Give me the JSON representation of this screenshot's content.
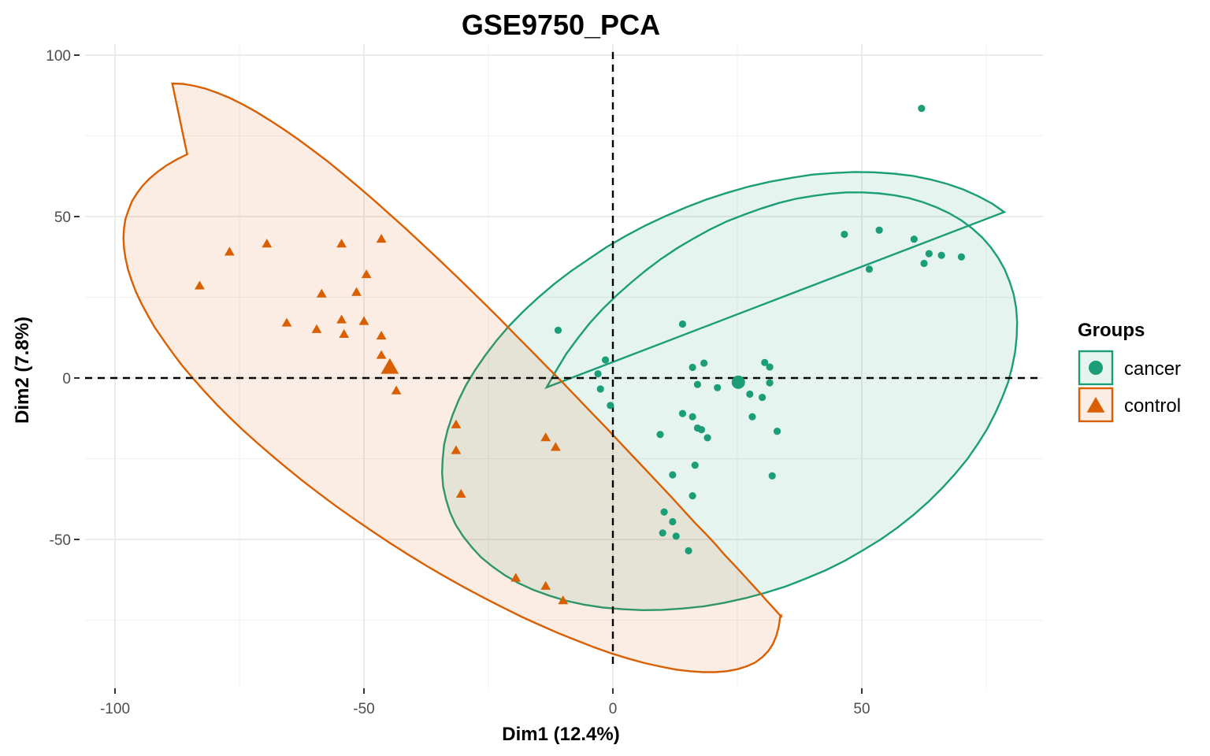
{
  "chart_data": {
    "type": "scatter",
    "title": "GSE9750_PCA",
    "xlabel": "Dim1 (12.4%)",
    "ylabel": "Dim2 (7.8%)",
    "xlim": [
      -101.5,
      86
    ],
    "ylim": [
      -95,
      102
    ],
    "x_ticks": [
      {
        "value": -100,
        "label": "-100"
      },
      {
        "value": -50,
        "label": "-50"
      },
      {
        "value": 0,
        "label": "0"
      },
      {
        "value": 50,
        "label": "50"
      }
    ],
    "y_ticks": [
      {
        "value": -50,
        "label": "-50"
      },
      {
        "value": 0,
        "label": "0"
      },
      {
        "value": 50,
        "label": "50"
      },
      {
        "value": 100,
        "label": "100"
      }
    ],
    "grid": true,
    "reference_lines": {
      "x": 0,
      "y": 0,
      "style": "dashed"
    },
    "legend": {
      "title": "Groups",
      "position": "right"
    },
    "series": [
      {
        "name": "cancer",
        "color": "#1b9e77",
        "marker": "circle",
        "centroid": [
          25.2,
          -1.3
        ],
        "ellipse": [
          [
            -13.3,
            -2.9
          ],
          [
            -11.4,
            2.3
          ],
          [
            -9.4,
            7.4
          ],
          [
            -7.1,
            12.2
          ],
          [
            -4.7,
            16.9
          ],
          [
            -2.1,
            21.3
          ],
          [
            0.7,
            25.5
          ],
          [
            3.6,
            29.5
          ],
          [
            6.6,
            33.3
          ],
          [
            9.7,
            36.9
          ],
          [
            12.9,
            40.2
          ],
          [
            16.2,
            43.2
          ],
          [
            19.5,
            46.0
          ],
          [
            22.9,
            48.5
          ],
          [
            26.4,
            50.6
          ],
          [
            29.8,
            52.5
          ],
          [
            33.3,
            54.2
          ],
          [
            36.7,
            55.5
          ],
          [
            40.2,
            56.4
          ],
          [
            43.6,
            57.1
          ],
          [
            46.9,
            57.5
          ],
          [
            50.2,
            57.5
          ],
          [
            53.4,
            57.2
          ],
          [
            56.5,
            56.6
          ],
          [
            59.5,
            55.7
          ],
          [
            62.4,
            54.4
          ],
          [
            65.1,
            52.8
          ],
          [
            67.6,
            51.0
          ],
          [
            70.0,
            48.8
          ],
          [
            72.2,
            46.3
          ],
          [
            74.2,
            43.5
          ],
          [
            75.9,
            40.5
          ],
          [
            77.4,
            37.2
          ],
          [
            78.7,
            33.6
          ],
          [
            79.7,
            29.8
          ],
          [
            80.5,
            25.9
          ],
          [
            81.0,
            21.7
          ],
          [
            81.2,
            17.3
          ],
          [
            81.1,
            12.8
          ],
          [
            80.8,
            8.2
          ],
          [
            80.2,
            3.5
          ],
          [
            79.4,
            -1.3
          ],
          [
            78.2,
            -6.1
          ],
          [
            76.8,
            -10.9
          ],
          [
            75.2,
            -15.7
          ],
          [
            73.3,
            -20.4
          ],
          [
            71.2,
            -25.1
          ],
          [
            68.8,
            -29.6
          ],
          [
            66.2,
            -34.0
          ],
          [
            63.4,
            -38.3
          ],
          [
            60.4,
            -42.4
          ],
          [
            57.2,
            -46.3
          ],
          [
            53.8,
            -50.0
          ],
          [
            50.2,
            -53.4
          ],
          [
            46.6,
            -56.6
          ],
          [
            42.8,
            -59.5
          ],
          [
            38.8,
            -62.1
          ],
          [
            34.8,
            -64.5
          ],
          [
            30.7,
            -66.5
          ],
          [
            26.6,
            -68.2
          ],
          [
            22.4,
            -69.6
          ],
          [
            18.3,
            -70.7
          ],
          [
            14.1,
            -71.4
          ],
          [
            9.9,
            -71.8
          ],
          [
            5.9,
            -71.9
          ],
          [
            1.9,
            -71.6
          ],
          [
            -2.0,
            -71.1
          ],
          [
            -5.8,
            -70.2
          ],
          [
            -9.4,
            -69.0
          ],
          [
            -12.8,
            -67.4
          ],
          [
            -16.0,
            -65.6
          ],
          [
            -19.0,
            -63.5
          ],
          [
            -21.7,
            -61.1
          ],
          [
            -24.2,
            -58.4
          ],
          [
            -26.5,
            -55.5
          ],
          [
            -28.4,
            -52.3
          ],
          [
            -30.1,
            -49.0
          ],
          [
            -31.6,
            -45.4
          ],
          [
            -32.7,
            -41.6
          ],
          [
            -33.5,
            -37.7
          ],
          [
            -34.1,
            -33.6
          ],
          [
            -34.3,
            -29.4
          ],
          [
            -34.2,
            -25.1
          ],
          [
            -33.9,
            -20.6
          ],
          [
            -33.2,
            -16.1
          ],
          [
            -32.2,
            -11.5
          ],
          [
            -31.0,
            -6.9
          ],
          [
            -29.5,
            -2.2
          ],
          [
            -27.7,
            2.4
          ],
          [
            -25.6,
            7.1
          ],
          [
            -23.3,
            11.7
          ],
          [
            -20.8,
            16.2
          ],
          [
            -18.0,
            20.6
          ],
          [
            -15.0,
            24.9
          ],
          [
            -11.8,
            29.1
          ],
          [
            -8.4,
            33.1
          ],
          [
            -4.8,
            36.9
          ],
          [
            -1.2,
            40.6
          ],
          [
            2.6,
            44.0
          ],
          [
            6.5,
            47.2
          ],
          [
            10.5,
            50.1
          ],
          [
            14.6,
            52.8
          ],
          [
            18.8,
            55.3
          ],
          [
            23.0,
            57.4
          ],
          [
            27.3,
            59.3
          ],
          [
            31.6,
            60.8
          ],
          [
            35.9,
            62.0
          ],
          [
            40.1,
            63.0
          ],
          [
            44.3,
            63.5
          ],
          [
            48.5,
            63.8
          ],
          [
            52.5,
            63.7
          ],
          [
            56.4,
            63.3
          ],
          [
            60.2,
            62.6
          ],
          [
            63.8,
            61.5
          ],
          [
            67.2,
            60.1
          ],
          [
            70.4,
            58.4
          ],
          [
            73.4,
            56.3
          ],
          [
            76.2,
            54.0
          ],
          [
            78.6,
            51.4
          ]
        ],
        "points": [
          [
            62,
            83.5
          ],
          [
            46.5,
            44.5
          ],
          [
            53.5,
            45.8
          ],
          [
            60.5,
            43
          ],
          [
            63.5,
            38.5
          ],
          [
            66,
            38
          ],
          [
            70,
            37.5
          ],
          [
            62.5,
            35.5
          ],
          [
            51.5,
            33.7
          ],
          [
            -11,
            14.8
          ],
          [
            14,
            16.7
          ],
          [
            -1.5,
            5.6
          ],
          [
            -3,
            1.3
          ],
          [
            -2.5,
            -3.4
          ],
          [
            -0.5,
            -8.5
          ],
          [
            16,
            3.3
          ],
          [
            18.3,
            4.6
          ],
          [
            30.5,
            4.8
          ],
          [
            31.5,
            3.4
          ],
          [
            17,
            -2
          ],
          [
            21,
            -3
          ],
          [
            27.5,
            -5
          ],
          [
            30,
            -6
          ],
          [
            31.5,
            -1.5
          ],
          [
            28,
            -12
          ],
          [
            14,
            -11
          ],
          [
            16,
            -12
          ],
          [
            17,
            -15.5
          ],
          [
            17.8,
            -16
          ],
          [
            19,
            -18.5
          ],
          [
            9.5,
            -17.5
          ],
          [
            33,
            -16.5
          ],
          [
            16.5,
            -27
          ],
          [
            12,
            -30
          ],
          [
            32,
            -30.3
          ],
          [
            16,
            -36.5
          ],
          [
            10.3,
            -41.5
          ],
          [
            12,
            -44.5
          ],
          [
            10,
            -48
          ],
          [
            12.7,
            -49
          ],
          [
            15.2,
            -53.5
          ]
        ]
      },
      {
        "name": "control",
        "color": "#d95f02",
        "marker": "triangle",
        "centroid": [
          -44.8,
          3.2
        ],
        "ellipse": [
          [
            -88.5,
            91.2
          ],
          [
            -86.4,
            91.1
          ],
          [
            -84.1,
            90.5
          ],
          [
            -81.8,
            89.6
          ],
          [
            -79.4,
            88.3
          ],
          [
            -76.9,
            86.7
          ],
          [
            -74.3,
            84.7
          ],
          [
            -71.6,
            82.4
          ],
          [
            -68.9,
            79.8
          ],
          [
            -66.1,
            77.0
          ],
          [
            -63.2,
            73.9
          ],
          [
            -60.2,
            70.5
          ],
          [
            -57.2,
            67.0
          ],
          [
            -54.2,
            63.2
          ],
          [
            -51.1,
            59.2
          ],
          [
            -48.0,
            55.1
          ],
          [
            -44.9,
            50.8
          ],
          [
            -41.7,
            46.4
          ],
          [
            -38.5,
            41.8
          ],
          [
            -35.3,
            37.2
          ],
          [
            -32.1,
            32.5
          ],
          [
            -28.9,
            27.7
          ],
          [
            -25.7,
            22.9
          ],
          [
            -22.5,
            18.0
          ],
          [
            -19.4,
            13.1
          ],
          [
            -16.3,
            8.3
          ],
          [
            -13.2,
            3.4
          ],
          [
            -10.1,
            -1.4
          ],
          [
            -7.1,
            -6.2
          ],
          [
            -4.2,
            -10.9
          ],
          [
            -1.3,
            -15.5
          ],
          [
            1.5,
            -20.1
          ],
          [
            4.2,
            -24.5
          ],
          [
            6.9,
            -28.9
          ],
          [
            9.4,
            -33.0
          ],
          [
            11.9,
            -37.1
          ],
          [
            14.2,
            -41.0
          ],
          [
            16.4,
            -44.7
          ],
          [
            18.6,
            -48.2
          ],
          [
            20.6,
            -51.5
          ],
          [
            22.4,
            -54.7
          ],
          [
            24.2,
            -57.6
          ],
          [
            25.8,
            -60.3
          ],
          [
            27.3,
            -62.8
          ],
          [
            28.6,
            -65.0
          ],
          [
            29.8,
            -67.0
          ],
          [
            30.8,
            -68.8
          ],
          [
            31.7,
            -70.3
          ],
          [
            32.4,
            -71.5
          ],
          [
            33.0,
            -72.5
          ],
          [
            33.4,
            -73.2
          ],
          [
            33.7,
            -73.7
          ],
          [
            33.8,
            -73.8
          ],
          [
            33.8,
            -73.7
          ],
          [
            33.6,
            -74.0
          ],
          [
            33.3,
            -77.1
          ],
          [
            32.8,
            -80.0
          ],
          [
            32.1,
            -82.5
          ],
          [
            31.2,
            -84.6
          ],
          [
            30.0,
            -86.5
          ],
          [
            28.6,
            -88.1
          ],
          [
            26.9,
            -89.3
          ],
          [
            25.0,
            -90.2
          ],
          [
            22.9,
            -90.8
          ],
          [
            20.6,
            -91.1
          ],
          [
            18.1,
            -91.1
          ],
          [
            15.4,
            -90.8
          ],
          [
            12.6,
            -90.3
          ],
          [
            9.6,
            -89.4
          ],
          [
            6.4,
            -88.3
          ],
          [
            3.1,
            -86.9
          ],
          [
            -0.3,
            -85.3
          ],
          [
            -3.8,
            -83.4
          ],
          [
            -7.3,
            -81.3
          ],
          [
            -11.0,
            -79.0
          ],
          [
            -14.7,
            -76.5
          ],
          [
            -18.4,
            -73.9
          ],
          [
            -22.2,
            -71.0
          ],
          [
            -26.0,
            -68.0
          ],
          [
            -29.8,
            -64.9
          ],
          [
            -33.6,
            -61.6
          ],
          [
            -37.4,
            -58.2
          ],
          [
            -41.1,
            -54.7
          ],
          [
            -44.8,
            -51.1
          ],
          [
            -48.4,
            -47.4
          ],
          [
            -52.0,
            -43.6
          ],
          [
            -55.5,
            -39.8
          ],
          [
            -58.9,
            -35.9
          ],
          [
            -62.2,
            -32.0
          ],
          [
            -65.4,
            -28.0
          ],
          [
            -68.5,
            -24.0
          ],
          [
            -71.5,
            -20.0
          ],
          [
            -74.4,
            -16.0
          ],
          [
            -77.1,
            -12.0
          ],
          [
            -79.7,
            -8.0
          ],
          [
            -82.1,
            -4.0
          ],
          [
            -84.4,
            0.0
          ],
          [
            -86.6,
            4.0
          ],
          [
            -88.5,
            7.9
          ],
          [
            -90.3,
            11.8
          ],
          [
            -92.0,
            15.6
          ],
          [
            -93.4,
            19.4
          ],
          [
            -94.7,
            23.1
          ],
          [
            -95.8,
            26.7
          ],
          [
            -96.7,
            30.3
          ],
          [
            -97.4,
            33.7
          ],
          [
            -97.9,
            37.1
          ],
          [
            -98.2,
            40.3
          ],
          [
            -98.3,
            43.4
          ],
          [
            -98.2,
            46.4
          ],
          [
            -97.9,
            49.3
          ],
          [
            -97.3,
            52.0
          ],
          [
            -96.6,
            54.7
          ],
          [
            -95.6,
            57.2
          ],
          [
            -94.5,
            59.5
          ],
          [
            -93.1,
            61.7
          ],
          [
            -91.5,
            63.8
          ],
          [
            -89.7,
            65.8
          ],
          [
            -87.7,
            67.6
          ],
          [
            -85.5,
            69.3
          ]
        ],
        "points": [
          [
            -69.5,
            41.5
          ],
          [
            -54.5,
            41.5
          ],
          [
            -46.5,
            43
          ],
          [
            -77,
            39
          ],
          [
            -49.5,
            32
          ],
          [
            -83,
            28.5
          ],
          [
            -58.5,
            26
          ],
          [
            -51.5,
            26.5
          ],
          [
            -65.5,
            17
          ],
          [
            -59.5,
            15
          ],
          [
            -54.5,
            18
          ],
          [
            -50,
            17.5
          ],
          [
            -54,
            13.5
          ],
          [
            -46.5,
            13
          ],
          [
            -46.5,
            7
          ],
          [
            -43.5,
            -4
          ],
          [
            -31.5,
            -14.5
          ],
          [
            -31.5,
            -22.5
          ],
          [
            -30.5,
            -36
          ],
          [
            -13.5,
            -18.5
          ],
          [
            -11.5,
            -21.5
          ],
          [
            -19.5,
            -62
          ],
          [
            -13.5,
            -64.5
          ],
          [
            -10,
            -69
          ]
        ]
      }
    ]
  }
}
